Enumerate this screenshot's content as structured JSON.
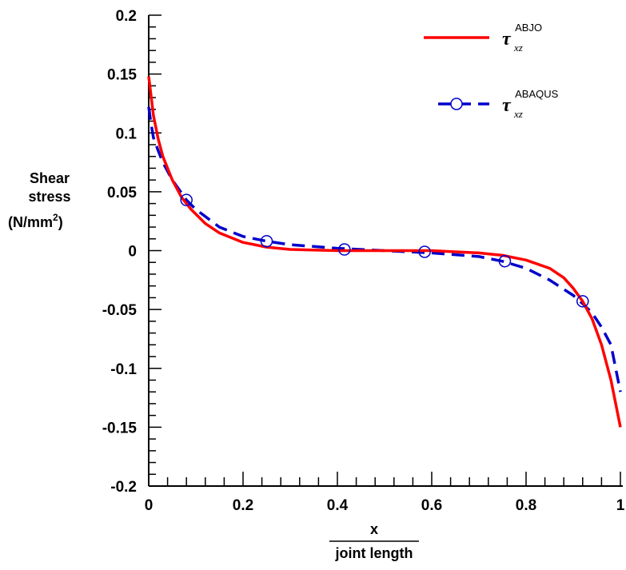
{
  "chart_data": {
    "type": "line",
    "xlim": [
      0,
      1
    ],
    "ylim": [
      -0.2,
      0.2
    ],
    "x_ticks": [
      "0",
      "0.2",
      "0.4",
      "0.6",
      "0.8",
      "1"
    ],
    "y_ticks": [
      "0.2",
      "0.15",
      "0.1",
      "0.05",
      "0",
      "-0.05",
      "-0.1",
      "-0.15",
      "-0.2"
    ],
    "ylabel": {
      "line1": "Shear",
      "line2": "stress",
      "line3": "(N/mm",
      "line3_sup": "2",
      "line3_end": ")"
    },
    "xlabel": {
      "numerator": "x",
      "denominator": "joint length"
    },
    "legend_position": "top-right",
    "grid": false,
    "series": [
      {
        "name": {
          "symbol": "τ",
          "sub": "xz",
          "sup": "ABJO"
        },
        "color": "#ff0000",
        "style": "solid",
        "marker": "none",
        "x": [
          0,
          0.01,
          0.02,
          0.03,
          0.05,
          0.07,
          0.09,
          0.12,
          0.15,
          0.2,
          0.25,
          0.3,
          0.4,
          0.5,
          0.6,
          0.65,
          0.7,
          0.75,
          0.8,
          0.85,
          0.88,
          0.9,
          0.92,
          0.94,
          0.96,
          0.98,
          0.99,
          1.0
        ],
        "y": [
          0.148,
          0.115,
          0.095,
          0.08,
          0.06,
          0.045,
          0.035,
          0.023,
          0.015,
          0.007,
          0.003,
          0.001,
          0.0,
          0.0,
          0.0,
          -0.001,
          -0.002,
          -0.004,
          -0.008,
          -0.015,
          -0.023,
          -0.032,
          -0.043,
          -0.058,
          -0.08,
          -0.11,
          -0.13,
          -0.15
        ]
      },
      {
        "name": {
          "symbol": "τ",
          "sub": "xz",
          "sup": "ABAQUS"
        },
        "color": "#0000cc",
        "style": "dashed",
        "marker": "circle",
        "x": [
          0,
          0.005,
          0.01,
          0.02,
          0.03,
          0.05,
          0.08,
          0.1,
          0.15,
          0.2,
          0.25,
          0.3,
          0.4,
          0.5,
          0.6,
          0.7,
          0.75,
          0.8,
          0.85,
          0.9,
          0.92,
          0.94,
          0.96,
          0.98,
          0.99,
          1.0
        ],
        "y": [
          0.122,
          0.108,
          0.096,
          0.085,
          0.075,
          0.06,
          0.043,
          0.035,
          0.02,
          0.012,
          0.008,
          0.005,
          0.002,
          0.0,
          -0.002,
          -0.005,
          -0.009,
          -0.015,
          -0.025,
          -0.038,
          -0.045,
          -0.053,
          -0.065,
          -0.08,
          -0.1,
          -0.12
        ],
        "marker_x": [
          0.08,
          0.25,
          0.415,
          0.585,
          0.755,
          0.92
        ],
        "marker_y": [
          0.043,
          0.008,
          0.001,
          -0.001,
          -0.009,
          -0.043
        ]
      }
    ]
  }
}
